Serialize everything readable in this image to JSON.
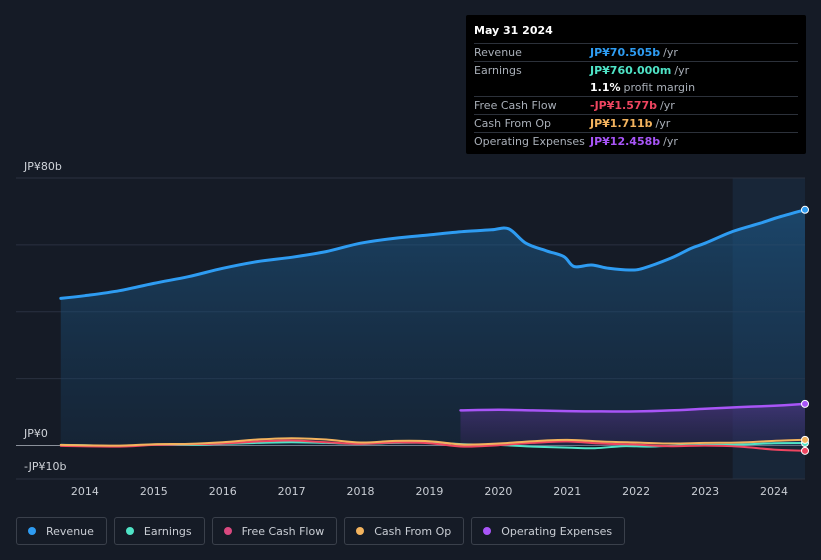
{
  "tooltip": {
    "date": "May 31 2024",
    "rows": [
      {
        "label": "Revenue",
        "value": "JP¥70.505b",
        "unit": "/yr",
        "color": "#2e9cf2"
      },
      {
        "label": "Earnings",
        "value": "JP¥760.000m",
        "unit": "/yr",
        "color": "#4fe3c6"
      },
      {
        "label": "",
        "value": "1.1%",
        "unit": "profit margin",
        "color": "#ffffff"
      },
      {
        "label": "Free Cash Flow",
        "value": "-JP¥1.577b",
        "unit": "/yr",
        "color": "#ef4560"
      },
      {
        "label": "Cash From Op",
        "value": "JP¥1.711b",
        "unit": "/yr",
        "color": "#f3b35e"
      },
      {
        "label": "Operating Expenses",
        "value": "JP¥12.458b",
        "unit": "/yr",
        "color": "#a855f7"
      }
    ]
  },
  "chart_data": {
    "type": "area",
    "ylabel_top": "JP¥80b",
    "ylabel_zero": "JP¥0",
    "ylabel_bottom": "-JP¥10b",
    "ylim": [
      -10,
      80
    ],
    "xlim": [
      2013.0,
      2024.45
    ],
    "x_ticks": [
      2014,
      2015,
      2016,
      2017,
      2018,
      2019,
      2020,
      2021,
      2022,
      2023,
      2024
    ],
    "x_tick_labels": [
      "2014",
      "2015",
      "2016",
      "2017",
      "2018",
      "2019",
      "2020",
      "2021",
      "2022",
      "2023",
      "2024"
    ],
    "highlight_start": 2023.4,
    "series": [
      {
        "name": "Revenue",
        "color": "#2e9cf2",
        "fill": true,
        "marker": true,
        "points": [
          [
            2013.65,
            44
          ],
          [
            2014.0,
            44.8
          ],
          [
            2014.5,
            46.3
          ],
          [
            2015.0,
            48.5
          ],
          [
            2015.5,
            50.5
          ],
          [
            2016.0,
            53
          ],
          [
            2016.5,
            55
          ],
          [
            2017.0,
            56.3
          ],
          [
            2017.5,
            58
          ],
          [
            2018.0,
            60.5
          ],
          [
            2018.5,
            62
          ],
          [
            2019.0,
            63
          ],
          [
            2019.5,
            64
          ],
          [
            2019.9,
            64.5
          ],
          [
            2020.15,
            64.8
          ],
          [
            2020.4,
            60.5
          ],
          [
            2020.7,
            58.2
          ],
          [
            2020.95,
            56.5
          ],
          [
            2021.1,
            53.5
          ],
          [
            2021.35,
            54
          ],
          [
            2021.6,
            53
          ],
          [
            2021.9,
            52.5
          ],
          [
            2022.1,
            53
          ],
          [
            2022.5,
            56
          ],
          [
            2022.8,
            59
          ],
          [
            2023.0,
            60.5
          ],
          [
            2023.4,
            64
          ],
          [
            2023.8,
            66.5
          ],
          [
            2024.1,
            68.5
          ],
          [
            2024.45,
            70.5
          ]
        ]
      },
      {
        "name": "Earnings",
        "color": "#4fe3c6",
        "fill": false,
        "marker": true,
        "points": [
          [
            2013.65,
            0.2
          ],
          [
            2014.0,
            0.1
          ],
          [
            2014.5,
            -0.2
          ],
          [
            2015.0,
            0.3
          ],
          [
            2015.5,
            0.2
          ],
          [
            2016.0,
            0.5
          ],
          [
            2016.5,
            0.8
          ],
          [
            2017.0,
            1
          ],
          [
            2017.5,
            0.8
          ],
          [
            2018.0,
            0.5
          ],
          [
            2018.5,
            0.8
          ],
          [
            2019.0,
            0.9
          ],
          [
            2019.5,
            0.4
          ],
          [
            2020.0,
            0.2
          ],
          [
            2020.5,
            -0.3
          ],
          [
            2021.0,
            -0.6
          ],
          [
            2021.4,
            -0.8
          ],
          [
            2021.8,
            -0.2
          ],
          [
            2022.2,
            -0.3
          ],
          [
            2022.6,
            0
          ],
          [
            2023.0,
            0.2
          ],
          [
            2023.5,
            0.3
          ],
          [
            2024.0,
            0.7
          ],
          [
            2024.45,
            0.76
          ]
        ]
      },
      {
        "name": "Free Cash Flow",
        "color": "#ef4560",
        "fill": false,
        "marker": true,
        "points": [
          [
            2013.65,
            -0.1
          ],
          [
            2014.5,
            -0.3
          ],
          [
            2015.0,
            0.2
          ],
          [
            2015.5,
            0.4
          ],
          [
            2016.0,
            0.6
          ],
          [
            2016.5,
            1.2
          ],
          [
            2017.0,
            1.5
          ],
          [
            2017.5,
            1
          ],
          [
            2018.0,
            0.5
          ],
          [
            2018.5,
            0.9
          ],
          [
            2019.0,
            0.7
          ],
          [
            2019.5,
            -0.3
          ],
          [
            2020.0,
            0.1
          ],
          [
            2020.5,
            0.8
          ],
          [
            2021.0,
            1.2
          ],
          [
            2021.5,
            0.6
          ],
          [
            2022.0,
            0.3
          ],
          [
            2022.5,
            -0.2
          ],
          [
            2023.0,
            0
          ],
          [
            2023.5,
            -0.3
          ],
          [
            2024.0,
            -1.2
          ],
          [
            2024.45,
            -1.577
          ]
        ]
      },
      {
        "name": "Cash From Op",
        "color": "#f3b35e",
        "fill": false,
        "marker": true,
        "points": [
          [
            2013.65,
            0.2
          ],
          [
            2014.5,
            0
          ],
          [
            2015.0,
            0.4
          ],
          [
            2015.5,
            0.5
          ],
          [
            2016.0,
            1
          ],
          [
            2016.5,
            1.8
          ],
          [
            2017.0,
            2.2
          ],
          [
            2017.5,
            1.8
          ],
          [
            2018.0,
            0.9
          ],
          [
            2018.5,
            1.4
          ],
          [
            2019.0,
            1.3
          ],
          [
            2019.5,
            0.3
          ],
          [
            2020.0,
            0.6
          ],
          [
            2020.5,
            1.3
          ],
          [
            2021.0,
            1.7
          ],
          [
            2021.5,
            1.2
          ],
          [
            2022.0,
            0.9
          ],
          [
            2022.5,
            0.6
          ],
          [
            2023.0,
            0.8
          ],
          [
            2023.5,
            0.9
          ],
          [
            2024.0,
            1.4
          ],
          [
            2024.45,
            1.711
          ]
        ]
      },
      {
        "name": "Operating Expenses",
        "color": "#a855f7",
        "fill": true,
        "marker": true,
        "points": [
          [
            2019.45,
            10.5
          ],
          [
            2020.0,
            10.7
          ],
          [
            2020.5,
            10.5
          ],
          [
            2021.0,
            10.3
          ],
          [
            2021.5,
            10.2
          ],
          [
            2022.0,
            10.2
          ],
          [
            2022.5,
            10.5
          ],
          [
            2023.0,
            11
          ],
          [
            2023.5,
            11.5
          ],
          [
            2024.0,
            11.9
          ],
          [
            2024.45,
            12.458
          ]
        ]
      }
    ]
  },
  "legend": [
    {
      "name": "Revenue",
      "color": "#2e9cf2"
    },
    {
      "name": "Earnings",
      "color": "#4fe3c6"
    },
    {
      "name": "Free Cash Flow",
      "color": "#d9487f"
    },
    {
      "name": "Cash From Op",
      "color": "#f3b35e"
    },
    {
      "name": "Operating Expenses",
      "color": "#a855f7"
    }
  ]
}
